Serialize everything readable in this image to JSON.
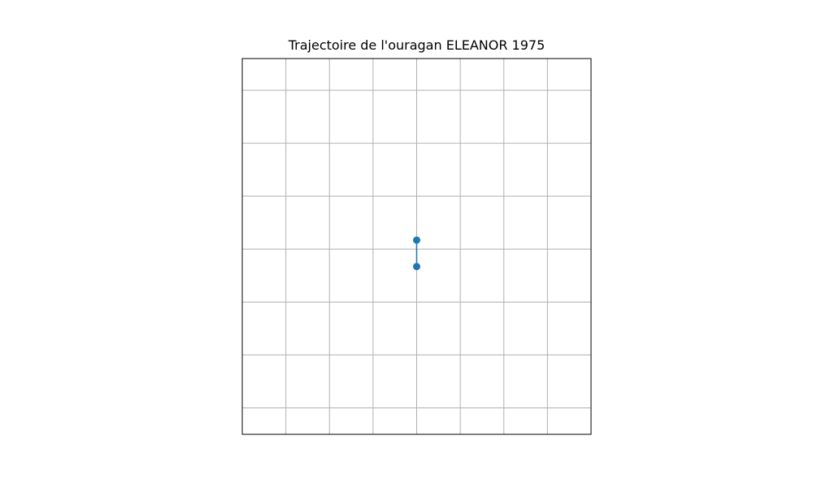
{
  "chart_data": {
    "type": "line",
    "title": "Trajectoire de l'ouragan ELEANOR 1975",
    "xlabel": "",
    "ylabel": "",
    "grid": true,
    "axis_labels_shown": false,
    "xlim": [
      -4.0,
      4.0
    ],
    "ylim": [
      -3.5,
      3.6
    ],
    "gridlines_x": [
      -3,
      -2,
      -1,
      0,
      1,
      2,
      3
    ],
    "gridlines_y": [
      -3,
      -2,
      -1,
      0,
      1,
      2,
      3
    ],
    "series": [
      {
        "points": [
          {
            "x": 0.0,
            "y": 0.17
          },
          {
            "x": 0.0,
            "y": -0.33
          }
        ]
      }
    ]
  },
  "colors": {
    "track": "#1f77b4",
    "grid": "#b0b0b0",
    "frame": "#000000",
    "background": "#ffffff"
  }
}
